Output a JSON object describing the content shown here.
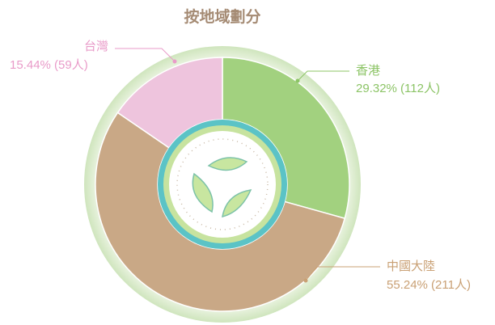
{
  "chart_data": {
    "type": "donut",
    "title": "按地域劃分",
    "categories": [
      "香港",
      "中國大陸",
      "台灣"
    ],
    "values": [
      29.32,
      55.24,
      15.44
    ],
    "value_labels": [
      "29.32% (112人)",
      "55.24% (211人)",
      "15.44% (59人)"
    ],
    "colors": [
      "#a2d17f",
      "#c9a886",
      "#eec4dd"
    ],
    "label_colors": [
      "#8cc466",
      "#c9a074",
      "#e99bc9"
    ],
    "title_color": "#a58b74"
  }
}
